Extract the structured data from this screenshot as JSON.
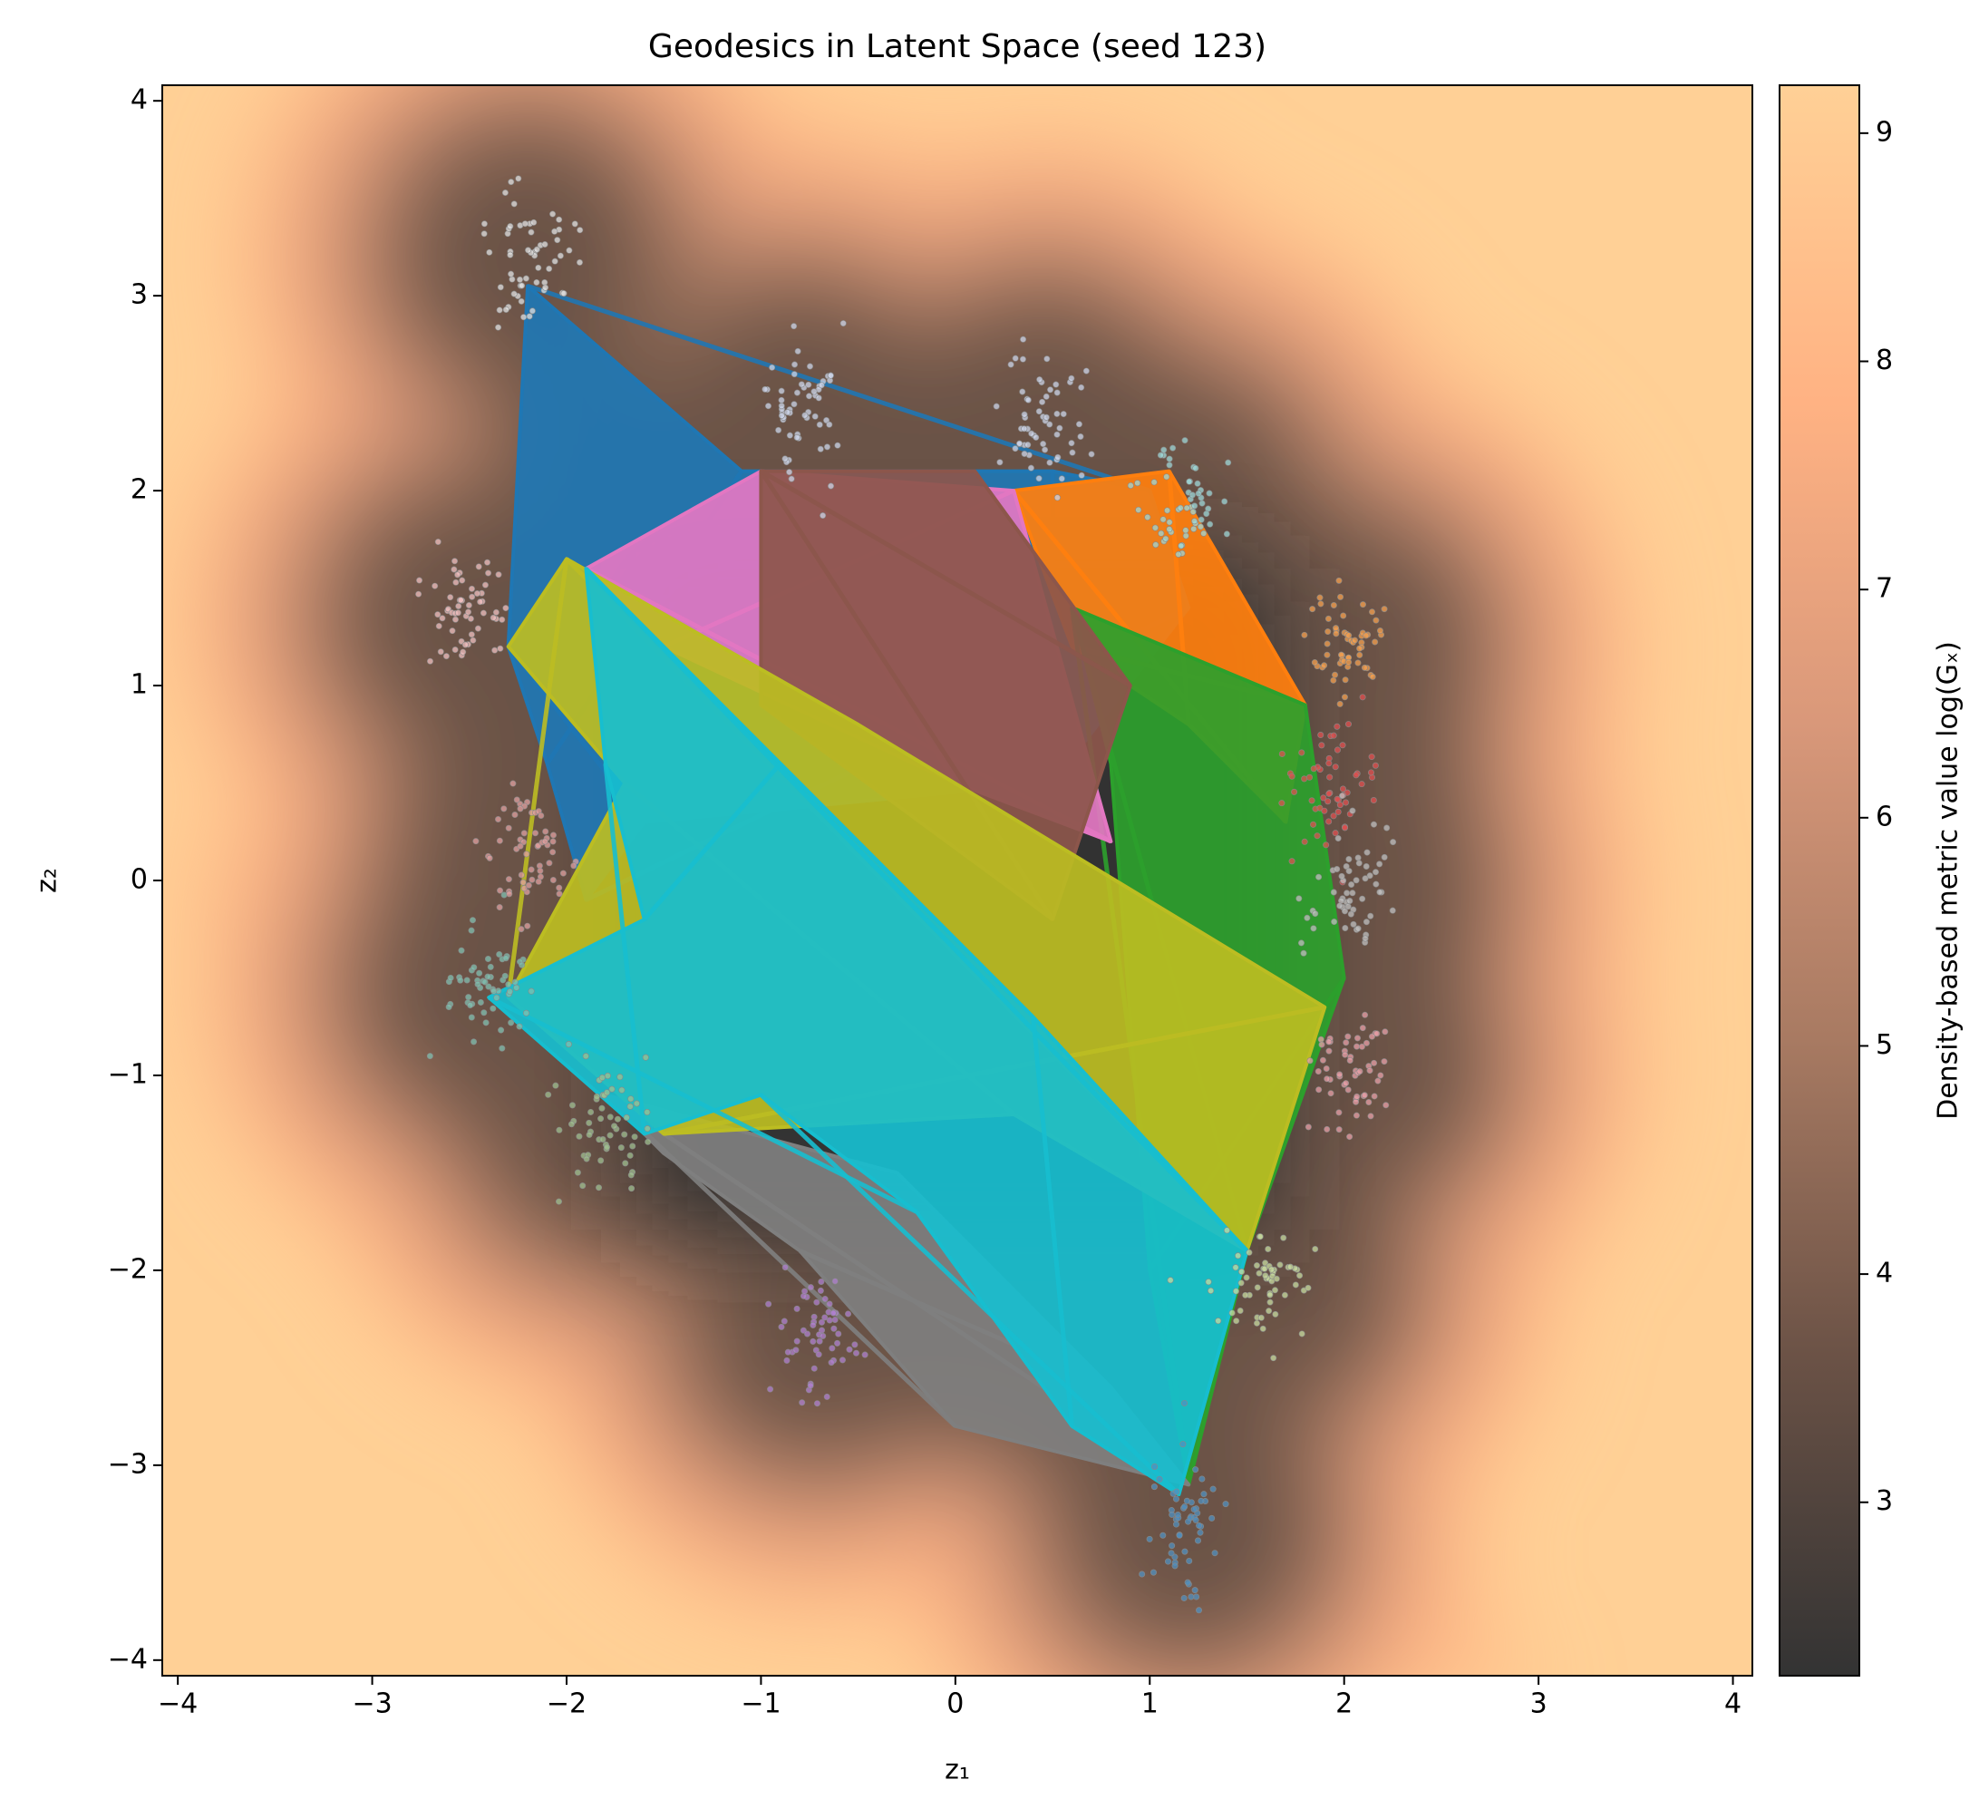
{
  "chart_data": {
    "type": "geodesic_map",
    "title": "Geodesics in Latent Space (seed 123)",
    "x_label": "z₁",
    "y_label": "z₂",
    "xlim": [
      -4.08,
      4.1
    ],
    "ylim": [
      -4.08,
      4.08
    ],
    "xticks": [
      {
        "value": -4,
        "label": "−4"
      },
      {
        "value": -3,
        "label": "−3"
      },
      {
        "value": -2,
        "label": "−2"
      },
      {
        "value": -1,
        "label": "−1"
      },
      0,
      1,
      2,
      3,
      4
    ],
    "yticks": [
      {
        "value": -4,
        "label": "−4"
      },
      {
        "value": -3,
        "label": "−3"
      },
      {
        "value": -2,
        "label": "−2"
      },
      {
        "value": -1,
        "label": "−1"
      },
      0,
      1,
      2,
      3,
      4
    ],
    "colorbar": {
      "label": "Density-based metric value log(Gₓ)",
      "clim": [
        2.24,
        9.21
      ],
      "ticks": [
        3,
        4,
        5,
        6,
        7,
        8,
        9
      ],
      "colormap": [
        "#333333",
        "#6b5246",
        "#a87a62",
        "#d9987a",
        "#ffb283",
        "#ffd096"
      ]
    },
    "clusters": [
      {
        "x": -2.2,
        "y": 3.2,
        "color": "#e2e2e2"
      },
      {
        "x": -0.8,
        "y": 2.4,
        "color": "#cdd5ea"
      },
      {
        "x": 0.45,
        "y": 2.35,
        "color": "#cdd5ea"
      },
      {
        "x": 1.15,
        "y": 1.95,
        "color": "#9dd8d8"
      },
      {
        "x": 2.0,
        "y": 1.2,
        "color": "#f4a050"
      },
      {
        "x": 1.95,
        "y": 0.5,
        "color": "#e05050"
      },
      {
        "x": 2.05,
        "y": -0.05,
        "color": "#c0c0c0"
      },
      {
        "x": 2.05,
        "y": -0.95,
        "color": "#e8a0a8"
      },
      {
        "x": 1.6,
        "y": -2.05,
        "color": "#c8dca0"
      },
      {
        "x": 1.2,
        "y": -3.3,
        "color": "#5090c0"
      },
      {
        "x": -0.7,
        "y": -2.3,
        "color": "#b080d0"
      },
      {
        "x": -1.8,
        "y": -1.25,
        "color": "#a0c090"
      },
      {
        "x": -2.4,
        "y": -0.55,
        "color": "#80c0b0"
      },
      {
        "x": -2.2,
        "y": 0.15,
        "color": "#e0a0a0"
      },
      {
        "x": -2.5,
        "y": 1.35,
        "color": "#f0c0c0"
      }
    ],
    "geodesic_regions": [
      {
        "color": "#1f77b4",
        "x": [
          -2.2,
          -1.1,
          0.5,
          1.0,
          1.2,
          0.5,
          -1.6,
          -1.9,
          -2.1,
          -2.3
        ],
        "y": [
          3.05,
          2.1,
          2.1,
          2.0,
          1.4,
          0.5,
          0.3,
          -0.1,
          0.6,
          1.2
        ]
      },
      {
        "color": "#ff7f0e",
        "x": [
          0.3,
          1.1,
          1.8,
          1.7,
          1.2,
          0.6
        ],
        "y": [
          2.0,
          2.1,
          0.9,
          0.3,
          0.8,
          1.2
        ]
      },
      {
        "color": "#2ca02c",
        "x": [
          0.6,
          1.8,
          2.0,
          1.5,
          1.2,
          1.0,
          0.8
        ],
        "y": [
          1.4,
          0.9,
          -0.5,
          -1.9,
          -3.1,
          -2.0,
          0.6
        ]
      },
      {
        "color": "#e377c2",
        "x": [
          -1.0,
          0.3,
          0.8,
          0.0,
          -1.5,
          -1.9
        ],
        "y": [
          2.1,
          2.0,
          0.2,
          0.5,
          1.2,
          1.6
        ]
      },
      {
        "color": "#8c564b",
        "x": [
          -1.0,
          0.1,
          0.9,
          0.5,
          -1.0
        ],
        "y": [
          2.1,
          2.1,
          1.0,
          -0.2,
          0.9
        ]
      },
      {
        "color": "#7f7f7f",
        "x": [
          -1.8,
          -0.3,
          0.8,
          1.2,
          0.0,
          -0.8,
          -1.5
        ],
        "y": [
          -1.1,
          -1.5,
          -2.6,
          -3.1,
          -2.8,
          -1.9,
          -1.4
        ]
      },
      {
        "color": "#bcbd22",
        "x": [
          -2.0,
          -0.5,
          1.9,
          1.5,
          0.3,
          -1.5,
          -2.3,
          -1.7,
          -2.3
        ],
        "y": [
          1.65,
          0.8,
          -0.65,
          -1.9,
          -1.2,
          -1.3,
          -0.6,
          0.5,
          1.2
        ]
      },
      {
        "color": "#17becf",
        "x": [
          -1.9,
          -0.9,
          0.4,
          1.5,
          1.15,
          0.6,
          -0.2,
          -1.0,
          -1.6,
          -2.4,
          -1.6,
          -1.8
        ],
        "y": [
          1.6,
          0.6,
          -0.7,
          -1.9,
          -3.15,
          -2.8,
          -1.7,
          -1.1,
          -1.3,
          -0.6,
          -0.2,
          0.6
        ]
      }
    ]
  }
}
